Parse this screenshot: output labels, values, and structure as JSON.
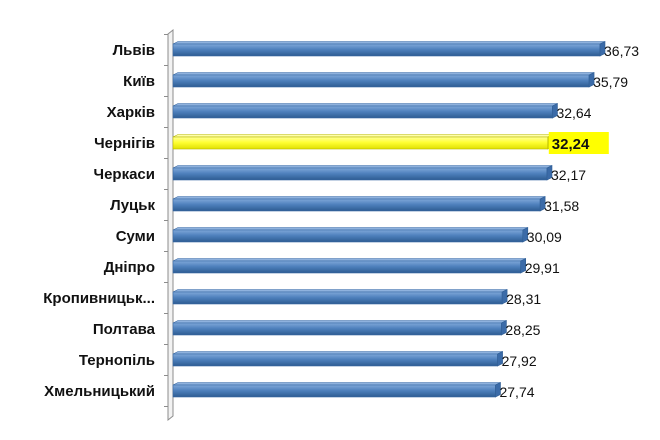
{
  "chart_data": {
    "type": "bar",
    "orientation": "horizontal",
    "categories": [
      "Львів",
      "Київ",
      "Харків",
      "Чернігів",
      "Черкаси",
      "Луцьк",
      "Суми",
      "Дніпро",
      "Кропивницьк...",
      "Полтава",
      "Тернопіль",
      "Хмельницький"
    ],
    "values": [
      36.73,
      35.79,
      32.64,
      32.24,
      32.17,
      31.58,
      30.09,
      29.91,
      28.31,
      28.25,
      27.92,
      27.74
    ],
    "value_labels": [
      "36,73",
      "35,79",
      "32,64",
      "32,24",
      "32,17",
      "31,58",
      "30,09",
      "29,91",
      "28,31",
      "28,25",
      "27,92",
      "27,74"
    ],
    "highlight_category": "Чернігів",
    "xlim": [
      0,
      36.73
    ],
    "grid": false,
    "colors": {
      "bar": "#4F81BD",
      "bar_dark": "#2E5C92",
      "highlight": "#FFFF33",
      "highlight_dark": "#E0E000",
      "highlight_label_bg": "#FFFF00"
    }
  }
}
